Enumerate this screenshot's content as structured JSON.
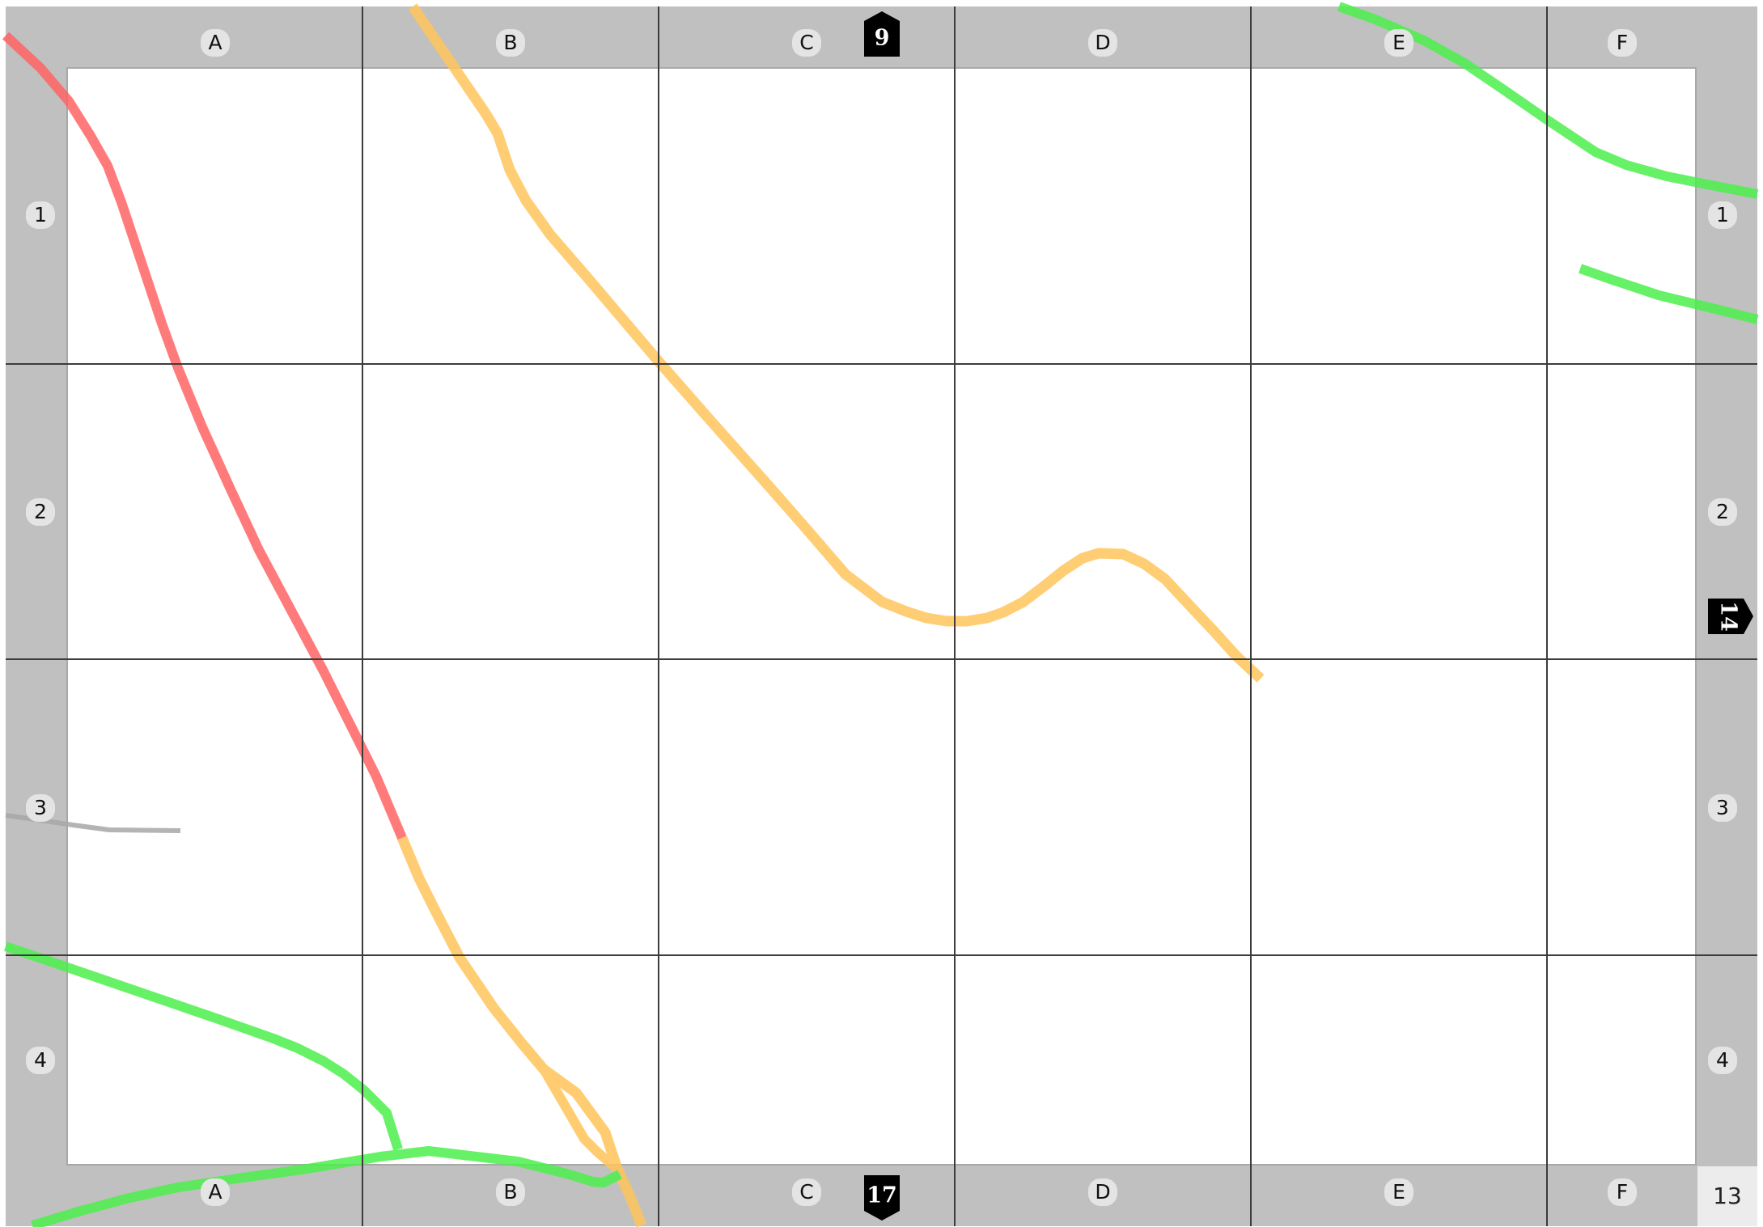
{
  "map": {
    "page_number": "13",
    "columns": [
      "A",
      "B",
      "C",
      "D",
      "E",
      "F"
    ],
    "rows": [
      "1",
      "2",
      "3",
      "4"
    ],
    "neighbor_pages": {
      "north": "9",
      "east": "14",
      "south": "17"
    },
    "colors": {
      "frame": "#c0c0c0",
      "grid": "#3c3c3c",
      "label_badge": "#e4e4e4",
      "neighbor_tab": "#000000",
      "page_box": "#ececec"
    },
    "routes": [
      {
        "kind": "major-road",
        "color": "#ff6e6e"
      },
      {
        "kind": "secondary-road",
        "color": "#ffc864"
      },
      {
        "kind": "green-road",
        "color": "#5cee5c"
      },
      {
        "kind": "minor-road",
        "color": "#b0b0b0"
      }
    ]
  }
}
